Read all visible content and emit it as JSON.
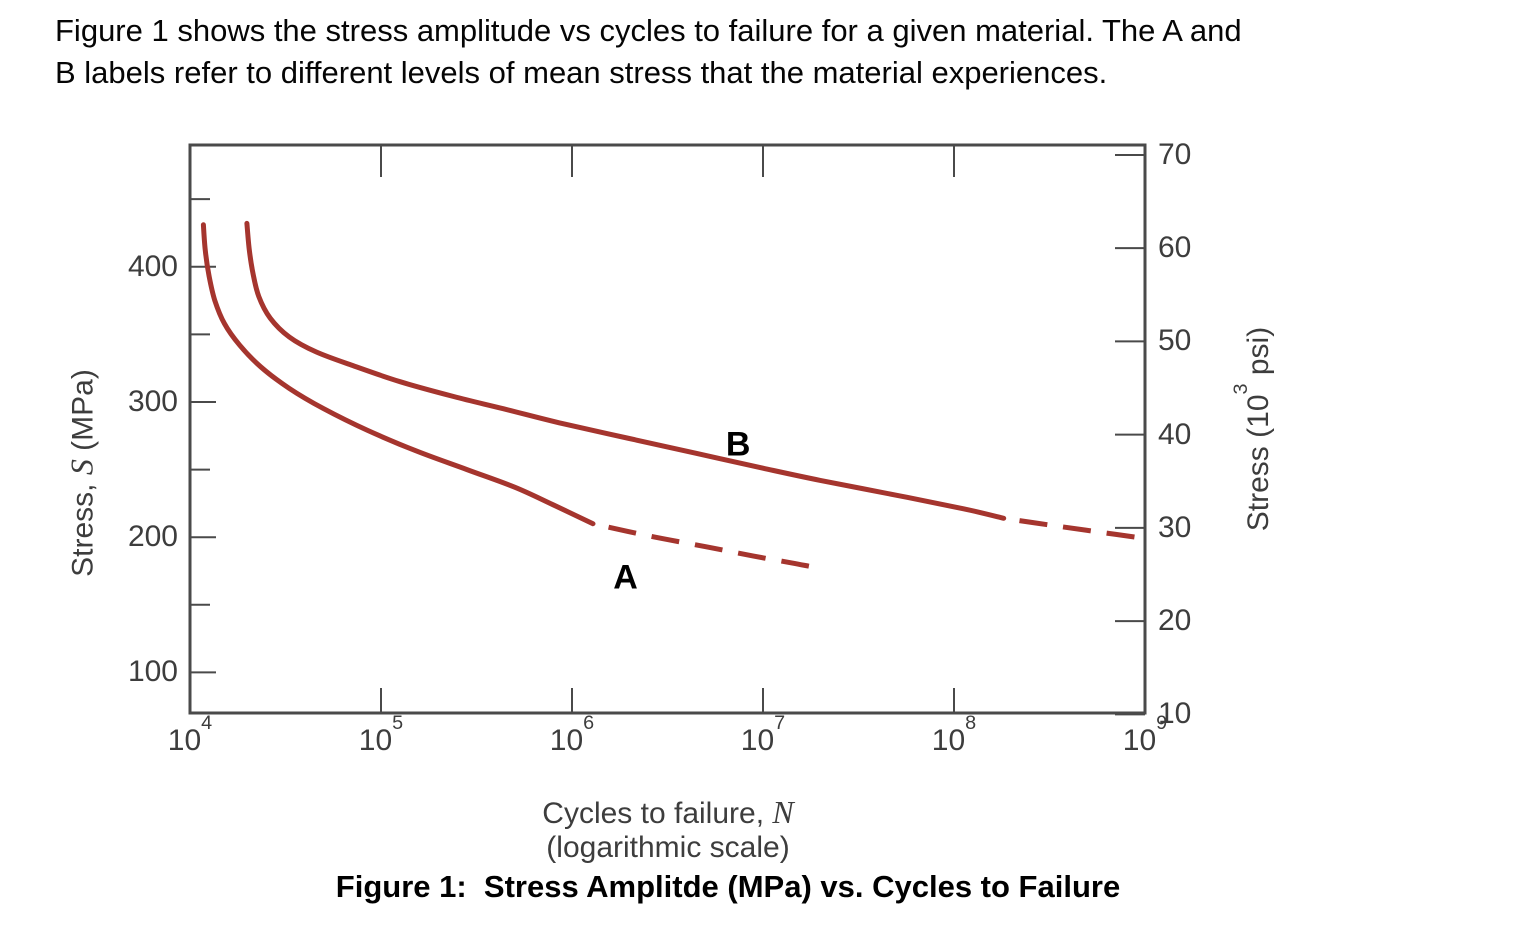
{
  "header": {
    "lines": [
      "Figure 1 shows the stress amplitude vs cycles to failure for a given material. The A and",
      "B labels refer to different levels of mean stress that the material experiences."
    ]
  },
  "figure_caption": "Figure 1:  Stress Amplitde (MPa) vs. Cycles to Failure",
  "colors": {
    "curve": "#a5352e",
    "axis": "#4a4a4a",
    "tick_text": "#3d3d3d",
    "body_text": "#050505"
  },
  "chart_data": {
    "type": "line",
    "title": "",
    "x_axis": {
      "scale": "log",
      "lim_log10": [
        4,
        9
      ],
      "tick_base": "10",
      "tick_exponents": [
        4,
        5,
        6,
        7,
        8,
        9
      ],
      "interior_tick_log10": [
        5,
        6,
        7,
        8
      ],
      "label": {
        "prefix": "Cycles to failure, ",
        "symbol": "N",
        "line2": "(logarithmic scale)"
      }
    },
    "y_axis_left": {
      "lim_mpa": [
        70,
        490
      ],
      "major_ticks": [
        400,
        300,
        200,
        100
      ],
      "minor_ticks": [
        450,
        350,
        250,
        150
      ],
      "label": {
        "prefix": "Stress, ",
        "symbol": "S",
        "suffix": " (MPa)"
      }
    },
    "y_axis_right": {
      "ticks_kpsi": [
        70,
        60,
        50,
        40,
        30,
        20,
        10
      ],
      "mpa_per_kpsi": 6.895,
      "label": {
        "prefix": "Stress (10",
        "sup": "3",
        "suffix": " psi)"
      }
    },
    "series": [
      {
        "name": "A",
        "description": "lower curve, solid then dashed",
        "solid": [
          [
            4.07,
            431
          ],
          [
            4.08,
            412
          ],
          [
            4.1,
            393
          ],
          [
            4.13,
            375
          ],
          [
            4.18,
            358
          ],
          [
            4.26,
            342
          ],
          [
            4.37,
            326
          ],
          [
            4.52,
            310
          ],
          [
            4.7,
            295
          ],
          [
            4.93,
            279
          ],
          [
            5.18,
            264
          ],
          [
            5.45,
            250
          ],
          [
            5.7,
            237
          ],
          [
            5.9,
            224
          ],
          [
            6.11,
            210
          ]
        ],
        "dashed": [
          [
            6.11,
            210
          ],
          [
            6.4,
            201
          ],
          [
            6.7,
            193
          ],
          [
            6.95,
            186
          ],
          [
            7.15,
            181
          ],
          [
            7.26,
            178
          ]
        ],
        "label_at": {
          "log10_n": 6.28,
          "stress_mpa": 170
        }
      },
      {
        "name": "B",
        "description": "upper curve, solid then dashed",
        "solid": [
          [
            4.298,
            432
          ],
          [
            4.31,
            413
          ],
          [
            4.33,
            395
          ],
          [
            4.36,
            378
          ],
          [
            4.42,
            362
          ],
          [
            4.52,
            348
          ],
          [
            4.66,
            337
          ],
          [
            4.85,
            327
          ],
          [
            5.1,
            315
          ],
          [
            5.38,
            304
          ],
          [
            5.64,
            295
          ],
          [
            5.95,
            284
          ],
          [
            6.3,
            273
          ],
          [
            6.65,
            262
          ],
          [
            7.0,
            251
          ],
          [
            7.3,
            242
          ],
          [
            7.7,
            231
          ],
          [
            8.05,
            221
          ],
          [
            8.26,
            214
          ]
        ],
        "dashed": [
          [
            8.26,
            214
          ],
          [
            8.5,
            209
          ],
          [
            8.75,
            204
          ],
          [
            9.0,
            199
          ]
        ],
        "label_at": {
          "log10_n": 6.87,
          "stress_mpa": 268
        }
      }
    ]
  }
}
